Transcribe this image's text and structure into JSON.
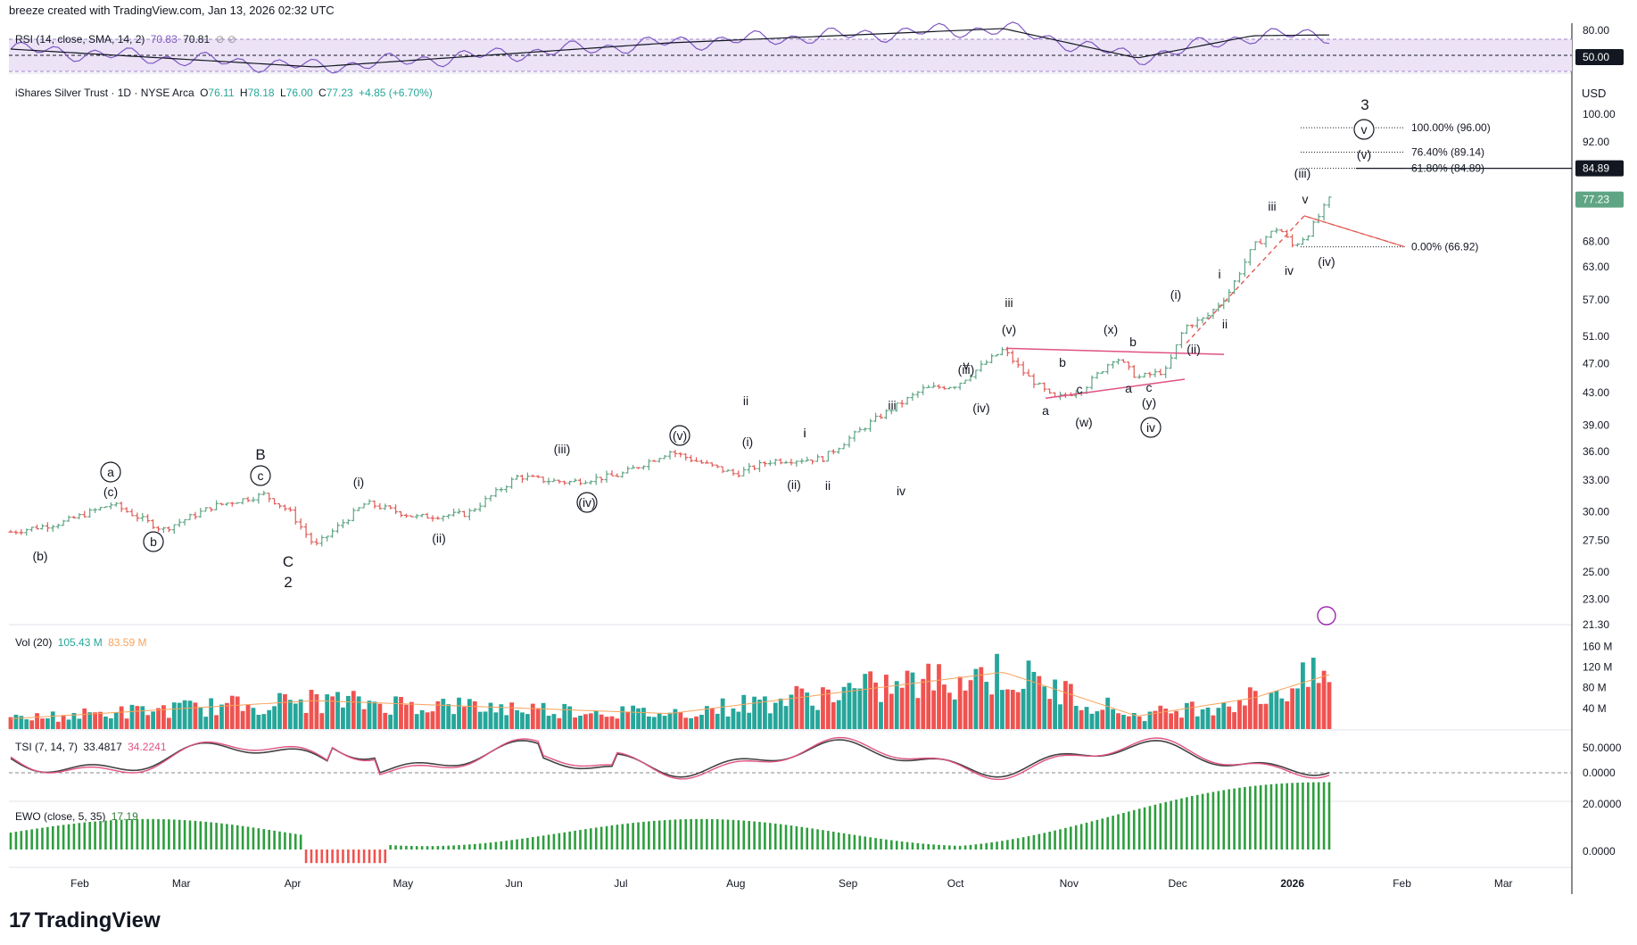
{
  "header": "breeze created with TradingView.com, Jan 13, 2026 02:32 UTC",
  "brand": "TradingView",
  "rsi_legend": {
    "label": "RSI (14, close, SMA, 14, 2)",
    "value1": "70.83",
    "value2": "70.81"
  },
  "main_legend": {
    "title": "iShares Silver Trust · 1D · NYSE Arca",
    "o_label": "O",
    "o": "76.11",
    "h_label": "H",
    "h": "78.18",
    "l_label": "L",
    "l": "76.00",
    "c_label": "C",
    "c": "77.23",
    "chg": "+4.85 (+6.70%)"
  },
  "vol_legend": {
    "label": "Vol (20)",
    "value1": "105.43 M",
    "value2": "83.59 M"
  },
  "tsi_legend": {
    "label": "TSI (7, 14, 7)",
    "value1": "33.4817",
    "value2": "34.2241"
  },
  "ewo_legend": {
    "label": "EWO (close, 5, 35)",
    "value1": "17.19"
  },
  "currency": "USD",
  "colors": {
    "up": "#26a69a",
    "down": "#ef5350",
    "rsi": "#7e57c2",
    "tsi_signal": "#e05283",
    "fib": "#131722"
  },
  "chart_data": {
    "type": "line",
    "title": "iShares Silver Trust · 1D · NYSE Arca",
    "x_ticks": [
      "Feb",
      "Mar",
      "Apr",
      "May",
      "Jun",
      "Jul",
      "Aug",
      "Sep",
      "Oct",
      "Nov",
      "Dec",
      "2026",
      "Feb",
      "Mar"
    ],
    "y_scale": "log",
    "y_ticks": [
      "100.00",
      "92.00",
      "84.89",
      "77.23",
      "68.00",
      "63.00",
      "57.00",
      "51.00",
      "47.00",
      "43.00",
      "39.00",
      "36.00",
      "33.00",
      "30.00",
      "27.50",
      "25.00",
      "23.00",
      "21.30"
    ],
    "price_labels": {
      "fib_level": "84.89",
      "last": "77.23"
    },
    "series": [
      {
        "name": "Price",
        "x": [
          "2025-01-13",
          "2025-01-27",
          "2025-02-10",
          "2025-02-24",
          "2025-03-10",
          "2025-03-24",
          "2025-03-31",
          "2025-04-07",
          "2025-04-21",
          "2025-05-05",
          "2025-05-19",
          "2025-06-02",
          "2025-06-09",
          "2025-06-16",
          "2025-06-30",
          "2025-07-14",
          "2025-07-21",
          "2025-08-01",
          "2025-08-11",
          "2025-08-25",
          "2025-09-08",
          "2025-09-22",
          "2025-10-01",
          "2025-10-14",
          "2025-10-20",
          "2025-10-28",
          "2025-11-05",
          "2025-11-14",
          "2025-11-20",
          "2025-11-28",
          "2025-12-03",
          "2025-12-09",
          "2025-12-15",
          "2025-12-22",
          "2025-12-29",
          "2026-01-02",
          "2026-01-06",
          "2026-01-12"
        ],
        "values": [
          28.2,
          29.0,
          30.7,
          28.4,
          30.5,
          31.6,
          30.0,
          27.0,
          30.8,
          29.5,
          29.8,
          33.4,
          33.0,
          32.8,
          33.5,
          36.0,
          35.0,
          33.6,
          35.0,
          35.2,
          39.5,
          43.5,
          44.0,
          49.0,
          45.5,
          42.2,
          43.5,
          48.0,
          45.0,
          46.0,
          52.5,
          54.0,
          58.0,
          67.0,
          71.0,
          67.0,
          69.5,
          77.23
        ]
      },
      {
        "name": "RSI",
        "x": [
          "2025-01",
          "2025-04",
          "2025-07",
          "2025-10",
          "2025-11",
          "2025-12",
          "2026-01"
        ],
        "values": [
          55,
          35,
          62,
          78,
          45,
          70,
          70.83
        ]
      },
      {
        "name": "Vol",
        "x": [
          "2025-01",
          "2025-04",
          "2025-07",
          "2025-10",
          "2025-11",
          "2025-12",
          "2026-01"
        ],
        "values": [
          20,
          55,
          30,
          110,
          25,
          60,
          105.43
        ]
      }
    ],
    "annotations": {
      "fib": [
        {
          "label": "100.00% (96.00)",
          "price": 96.0
        },
        {
          "label": "76.40% (89.14)",
          "price": 89.14
        },
        {
          "label": "61.80% (84.89)",
          "price": 84.89
        },
        {
          "label": "0.00% (66.92)",
          "price": 66.92
        }
      ],
      "waves": [
        "(b)",
        "a",
        "(c)",
        "b",
        "B",
        "c",
        "C",
        "2",
        "(i)",
        "(ii)",
        "(iii)",
        "(iv)",
        "i",
        "(v)",
        "ii",
        "(i)",
        "(ii)",
        "i",
        "ii",
        "iii",
        "iv",
        "(iii)",
        "v",
        "(iv)",
        "iii",
        "(v)",
        "a",
        "b",
        "c",
        "(w)",
        "(x)",
        "b",
        "a",
        "c",
        "(y)",
        "iv",
        "(i)",
        "(ii)",
        "i",
        "ii",
        "iii",
        "iv",
        "(iii)",
        "v",
        "(iv)",
        "(v)",
        "v",
        "3"
      ]
    }
  }
}
